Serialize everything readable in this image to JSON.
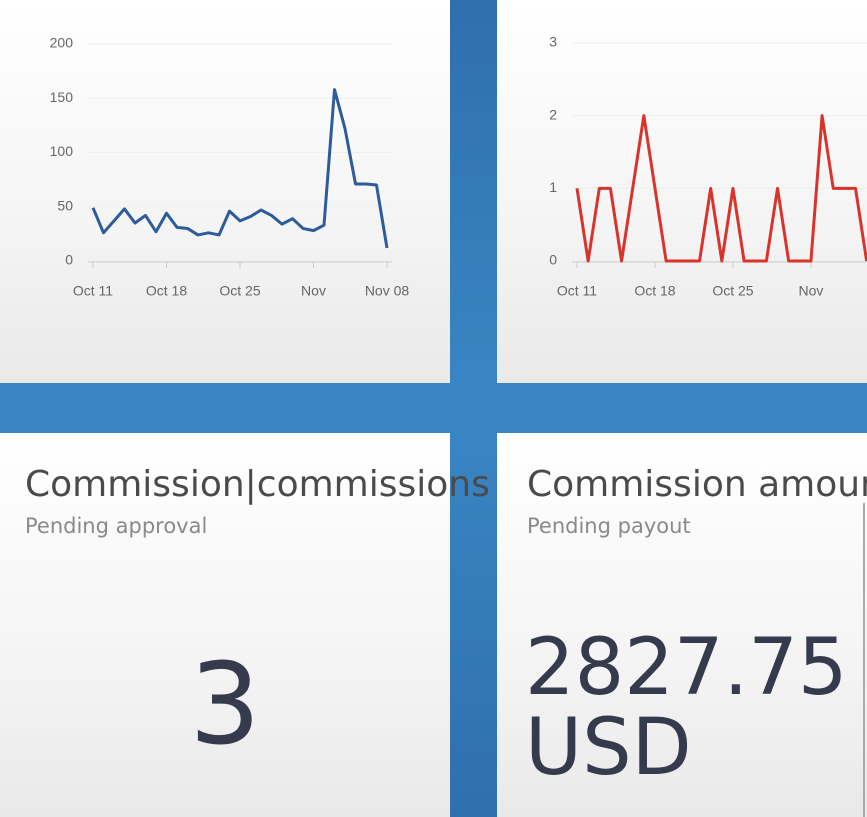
{
  "chart_data": [
    {
      "type": "line",
      "color": "#2e5b9a",
      "categories": [
        "Oct 11",
        null,
        null,
        null,
        null,
        null,
        null,
        "Oct 18",
        null,
        null,
        null,
        null,
        null,
        null,
        "Oct 25",
        null,
        null,
        null,
        null,
        null,
        null,
        "Nov",
        null,
        null,
        null,
        null,
        null,
        null,
        "Nov 08"
      ],
      "values": [
        49,
        26,
        37,
        48,
        35,
        42,
        27,
        44,
        31,
        30,
        24,
        26,
        24,
        46,
        37,
        41,
        47,
        42,
        34,
        39,
        30,
        28,
        33,
        158,
        122,
        71,
        71,
        70,
        12
      ],
      "ylim": [
        0,
        200
      ],
      "yticks": [
        0,
        50,
        100,
        150,
        200
      ],
      "grid": true
    },
    {
      "type": "line",
      "color": "#d9342b",
      "categories": [
        "Oct 11",
        null,
        null,
        null,
        null,
        null,
        null,
        "Oct 18",
        null,
        null,
        null,
        null,
        null,
        null,
        "Oct 25",
        null,
        null,
        null,
        null,
        null,
        null,
        "Nov",
        null,
        null,
        null,
        null,
        null
      ],
      "values": [
        1,
        0,
        1,
        1,
        0,
        1,
        2,
        1,
        0,
        0,
        0,
        0,
        1,
        0,
        1,
        0,
        0,
        0,
        1,
        0,
        0,
        0,
        2,
        1,
        1,
        1,
        0
      ],
      "ylim": [
        0,
        3
      ],
      "yticks": [
        0,
        1,
        2,
        3
      ],
      "grid": true
    }
  ],
  "cards": [
    {
      "title": "Commission|commissions",
      "subtitle": "Pending approval",
      "value": 3
    },
    {
      "title": "Commission amount",
      "subtitle": "Pending payout",
      "value": "2827.75",
      "unit": "USD"
    }
  ]
}
